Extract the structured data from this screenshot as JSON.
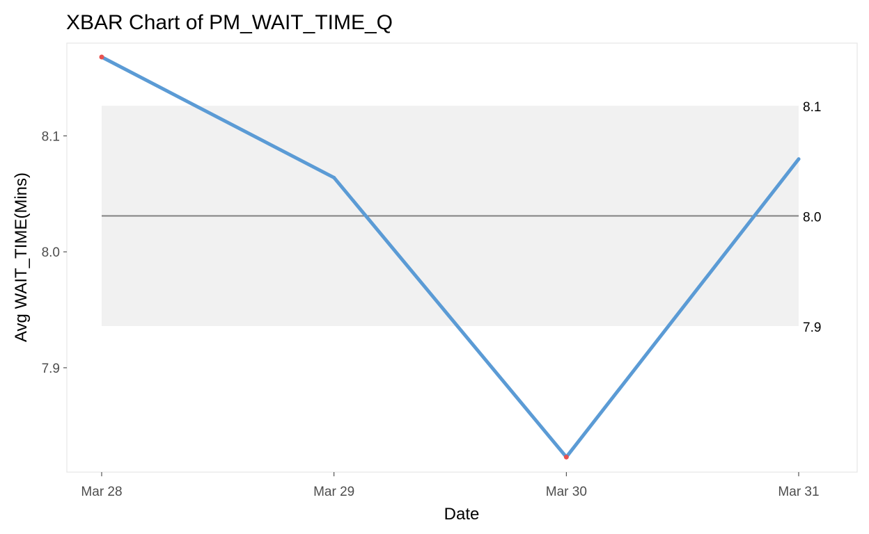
{
  "chart_data": {
    "type": "line",
    "title": "XBAR Chart of PM_WAIT_TIME_Q",
    "xlabel": "Date",
    "ylabel": "Avg WAIT_TIME(Mins)",
    "x": [
      "Mar 28",
      "Mar 29",
      "Mar 30",
      "Mar 31"
    ],
    "series": [
      {
        "values": [
          8.168,
          8.064,
          7.823,
          8.08
        ]
      }
    ],
    "out_of_control_points": [
      "Mar 28",
      "Mar 30"
    ],
    "center_line": 8.031,
    "control_limits": {
      "upper": 8.126,
      "lower": 7.936
    },
    "limit_labels": [
      "8.1",
      "8.0",
      "7.9"
    ],
    "ylim": [
      7.81,
      8.18
    ],
    "yticks": [
      7.9,
      8.0,
      8.1
    ],
    "ytick_labels": [
      "7.9",
      "8.0",
      "8.1"
    ],
    "grid": false,
    "colors": {
      "series_line": "#5b9bd5",
      "out_of_control": "#e8524f",
      "center_line": "#808080",
      "control_band": "#f1f1f1",
      "panel_border": "#e6e6e6"
    }
  }
}
